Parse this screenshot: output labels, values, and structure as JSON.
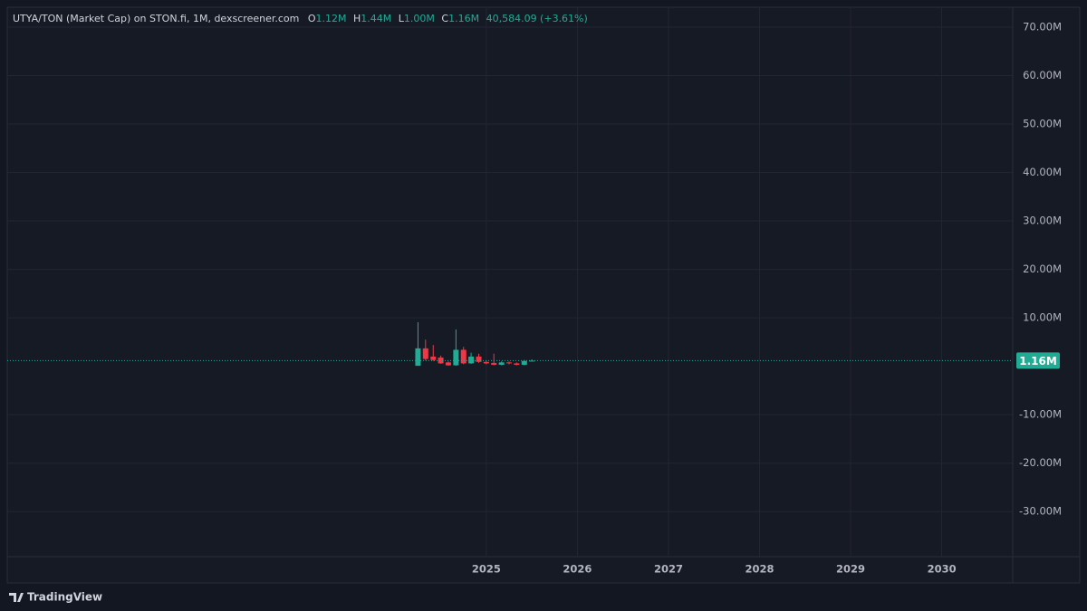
{
  "chart_data": {
    "type": "candlestick",
    "title": "UTYA/TON (Market Cap) on STON.fi, 1M, dexscreener.com",
    "legend": {
      "open_label": "O",
      "open": "1.12M",
      "high_label": "H",
      "high": "1.44M",
      "low_label": "L",
      "low": "1.00M",
      "close_label": "C",
      "close": "1.16M",
      "change": "40,584.09 (+3.61%)"
    },
    "last_price_label": "1.16M",
    "brand": "TradingView",
    "x": [
      2024.25,
      2024.333,
      2024.417,
      2024.5,
      2024.583,
      2024.667,
      2024.75,
      2024.833,
      2024.917,
      2025.0,
      2025.083,
      2025.167,
      2025.25,
      2025.333,
      2025.417,
      2025.5
    ],
    "open": [
      100000,
      3700000,
      2000000,
      1800000,
      800000,
      200000,
      3400000,
      600000,
      2000000,
      900000,
      700000,
      300000,
      800000,
      600000,
      300000,
      1120000
    ],
    "high": [
      9100000,
      5500000,
      4400000,
      2200000,
      1000000,
      7600000,
      4000000,
      2800000,
      2600000,
      1200000,
      2600000,
      1000000,
      1000000,
      800000,
      1300000,
      1440000
    ],
    "low": [
      100000,
      1200000,
      1100000,
      500000,
      100000,
      100000,
      400000,
      500000,
      700000,
      400000,
      200000,
      200000,
      400000,
      200000,
      200000,
      1000000
    ],
    "close": [
      3700000,
      1500000,
      1300000,
      600000,
      200000,
      3400000,
      600000,
      2000000,
      900000,
      600000,
      300000,
      800000,
      600000,
      300000,
      1100000,
      1160000
    ],
    "up_color": "#22ab94",
    "down_color": "#f23645",
    "xlim": [
      2019.74,
      2030.78
    ],
    "xticks": [
      2025,
      2026,
      2027,
      2028,
      2029,
      2030
    ],
    "ylim": [
      -39300000,
      74100000
    ],
    "yticks": [
      {
        "value": 70000000,
        "label": "70.00M"
      },
      {
        "value": 60000000,
        "label": "60.00M"
      },
      {
        "value": 50000000,
        "label": "50.00M"
      },
      {
        "value": 40000000,
        "label": "40.00M"
      },
      {
        "value": 30000000,
        "label": "30.00M"
      },
      {
        "value": 20000000,
        "label": "20.00M"
      },
      {
        "value": 10000000,
        "label": "10.00M"
      },
      {
        "value": -10000000,
        "label": "-10.00M"
      },
      {
        "value": -20000000,
        "label": "-20.00M"
      },
      {
        "value": -30000000,
        "label": "-30.00M"
      }
    ],
    "grid": true
  }
}
